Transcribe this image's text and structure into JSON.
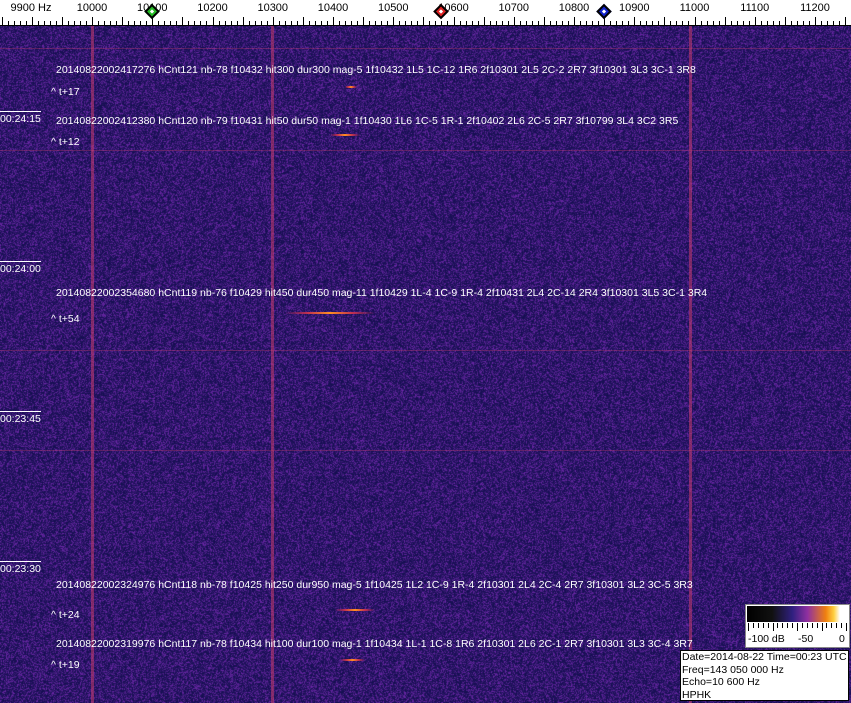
{
  "axis": {
    "unit_label": "9900 Hz",
    "labels": [
      "10000",
      "10100",
      "10200",
      "10300",
      "10400",
      "10500",
      "10600",
      "10700",
      "10800",
      "10900",
      "11000",
      "11100",
      "11200"
    ],
    "markers": [
      {
        "name": "green",
        "freq_hz": 10100,
        "color": "#22bb22"
      },
      {
        "name": "red",
        "freq_hz": 10580,
        "color": "#dd2222"
      },
      {
        "name": "blue",
        "freq_hz": 10850,
        "color": "#1122cc"
      }
    ]
  },
  "colors": {
    "background": "#2a1f7a",
    "line": "#c83c6e"
  },
  "time_labels": [
    "00:24:15",
    "00:24:00",
    "00:23:45",
    "00:23:30"
  ],
  "events": [
    {
      "text": "20140822002417276 hCnt121 nb-78 f10432 hit300 dur300 mag-5 1f10432 1L5 1C-12 1R6 2f10301 2L5 2C-2 2R7 3f10301 3L3 3C-1 3R8",
      "offset": "^ t+17"
    },
    {
      "text": "20140822002412380 hCnt120 nb-79 f10431 hit50 dur50 mag-1 1f10430 1L6 1C-5 1R-1 2f10402 2L6 2C-5 2R7 3f10799 3L4 3C2 3R5",
      "offset": "^ t+12"
    },
    {
      "text": "20140822002354680 hCnt119 nb-76 f10429 hit450 dur450 mag-11 1f10429 1L-4 1C-9 1R-4 2f10431 2L4 2C-14 2R4 3f10301 3L5 3C-1 3R4",
      "offset": "^ t+54"
    },
    {
      "text": "20140822002324976 hCnt118 nb-78 f10425 hit250 dur950 mag-5 1f10425 1L2 1C-9 1R-4 2f10301 2L4 2C-4 2R7 3f10301 3L2 3C-5 3R3",
      "offset": "^ t+24"
    },
    {
      "text": "20140822002319976 hCnt117 nb-78 f10434 hit100 dur100 mag-1 1f10434 1L-1 1C-8 1R6 2f10301 2L6 2C-1 2R7 3f10301 3L3 3C-4 3R7",
      "offset": "^ t+19"
    }
  ],
  "scale": {
    "min_label": "-100 dB",
    "mid_label": "-50",
    "max_label": "0"
  },
  "info": {
    "date_time": "Date=2014-08-22 Time=00:23 UTC",
    "freq": "Freq=143 050 000 Hz",
    "echo": "Echo=10 600 Hz",
    "station": "HPHK"
  }
}
